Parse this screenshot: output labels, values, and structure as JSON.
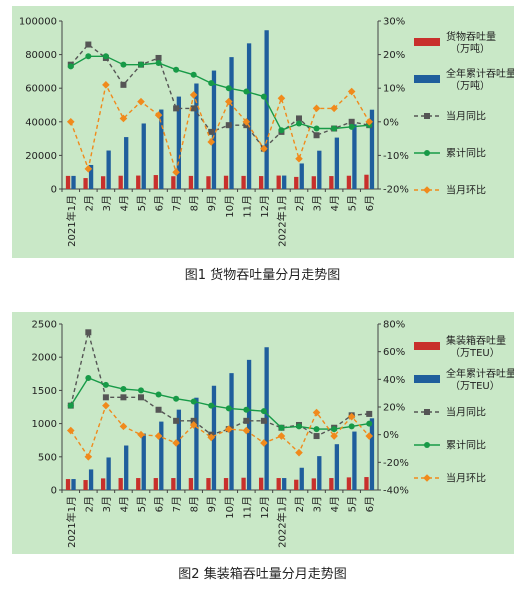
{
  "charts": [
    {
      "caption": "图1  货物吞吐量分月走势图",
      "chart_data": {
        "type": "bar",
        "categories": [
          "2021年1月",
          "2月",
          "3月",
          "4月",
          "5月",
          "6月",
          "7月",
          "8月",
          "9月",
          "10月",
          "11月",
          "12月",
          "2022年1月",
          "2月",
          "3月",
          "4月",
          "5月",
          "6月"
        ],
        "left_axis": {
          "min": 0,
          "max": 100000,
          "ticks": [
            0,
            20000,
            40000,
            60000,
            80000,
            100000
          ],
          "tick_labels": [
            "0",
            "20000",
            "40000",
            "60000",
            "80000",
            "100000"
          ]
        },
        "right_axis": {
          "min": -20,
          "max": 30,
          "ticks": [
            -20,
            -10,
            0,
            10,
            20,
            30
          ],
          "tick_labels": [
            "-20%",
            "-10%",
            "0%",
            "10%",
            "20%",
            "30%"
          ]
        },
        "series": [
          {
            "name": "货物吞吐量（万吨）",
            "type": "bar",
            "axis": "left",
            "color": "#c8302c",
            "values": [
              7800,
              6500,
              7600,
              7900,
              8000,
              8300,
              7600,
              7800,
              7600,
              7900,
              7800,
              7700,
              8000,
              7200,
              7600,
              7700,
              7900,
              8500
            ]
          },
          {
            "name": "全年累计吞吐量（万吨）",
            "type": "bar",
            "axis": "left",
            "color": "#1f5e9c",
            "values": [
              7800,
              14300,
              22900,
              30900,
              39000,
              47300,
              55000,
              62800,
              70500,
              78500,
              86700,
              94500,
              8000,
              15200,
              22800,
              30600,
              38500,
              47200
            ]
          },
          {
            "name": "当月同比",
            "type": "line",
            "axis": "right",
            "color": "#555555",
            "dash": true,
            "marker": "square",
            "values": [
              17,
              23,
              19,
              11,
              17,
              19,
              4,
              4,
              -3,
              -1,
              -1,
              -8,
              -3,
              1,
              -4,
              -2,
              0,
              -1
            ]
          },
          {
            "name": "累计同比",
            "type": "line",
            "axis": "right",
            "color": "#179a47",
            "dash": false,
            "marker": "circle",
            "values": [
              16.5,
              19.5,
              19.5,
              17,
              17,
              17.5,
              15.5,
              14,
              11.5,
              10,
              9,
              7.5,
              -2.5,
              -0.5,
              -2,
              -2,
              -1.5,
              -1
            ]
          },
          {
            "name": "当月环比",
            "type": "line",
            "axis": "right",
            "color": "#f08a1c",
            "dash": true,
            "marker": "diamond",
            "values": [
              0,
              -14,
              11,
              1,
              6,
              2,
              -15,
              8,
              -6,
              6,
              0,
              -8,
              7,
              -11,
              4,
              4,
              9,
              0
            ]
          }
        ]
      }
    },
    {
      "caption": "图2  集装箱吞吐量分月走势图",
      "chart_data": {
        "type": "bar",
        "categories": [
          "2021年1月",
          "2月",
          "3月",
          "4月",
          "5月",
          "6月",
          "7月",
          "8月",
          "9月",
          "10月",
          "11月",
          "12月",
          "2022年1月",
          "2月",
          "3月",
          "4月",
          "5月",
          "6月"
        ],
        "left_axis": {
          "min": 0,
          "max": 2500,
          "ticks": [
            0,
            500,
            1000,
            1500,
            2000,
            2500
          ],
          "tick_labels": [
            "0",
            "500",
            "1000",
            "1500",
            "2000",
            "2500"
          ]
        },
        "right_axis": {
          "min": -40,
          "max": 80,
          "ticks": [
            -40,
            -20,
            0,
            20,
            40,
            60,
            80
          ],
          "tick_labels": [
            "-40%",
            "-20%",
            "0%",
            "20%",
            "40%",
            "60%",
            "80%"
          ]
        },
        "series": [
          {
            "name": "集装箱吞吐量（万TEU）",
            "type": "bar",
            "axis": "left",
            "color": "#c8302c",
            "values": [
              165,
              150,
              175,
              180,
              180,
              180,
              180,
              180,
              180,
              180,
              185,
              185,
              180,
              155,
              175,
              180,
              190,
              195
            ]
          },
          {
            "name": "全年累计吞吐量（万TEU）",
            "type": "bar",
            "axis": "left",
            "color": "#1f5e9c",
            "values": [
              165,
              310,
              490,
              670,
              850,
              1030,
              1210,
              1390,
              1570,
              1760,
              1960,
              2150,
              180,
              335,
              510,
              690,
              880,
              1080
            ]
          },
          {
            "name": "当月同比",
            "type": "line",
            "axis": "right",
            "color": "#555555",
            "dash": true,
            "marker": "square",
            "values": [
              21,
              74,
              27,
              27,
              27,
              18,
              10,
              10,
              0,
              4,
              10,
              10,
              5,
              7,
              -1,
              5,
              14,
              15
            ]
          },
          {
            "name": "累计同比",
            "type": "line",
            "axis": "right",
            "color": "#179a47",
            "dash": false,
            "marker": "circle",
            "values": [
              21,
              41,
              36,
              33,
              32,
              29,
              26,
              24,
              21,
              19,
              18,
              17,
              5,
              6,
              4,
              4,
              6,
              8
            ]
          },
          {
            "name": "当月环比",
            "type": "line",
            "axis": "right",
            "color": "#f08a1c",
            "dash": true,
            "marker": "diamond",
            "values": [
              3,
              -16,
              21,
              6,
              0,
              -1,
              -6,
              7,
              -2,
              4,
              3,
              -6,
              -1,
              -13,
              16,
              -1,
              13,
              -1
            ]
          }
        ]
      }
    }
  ]
}
